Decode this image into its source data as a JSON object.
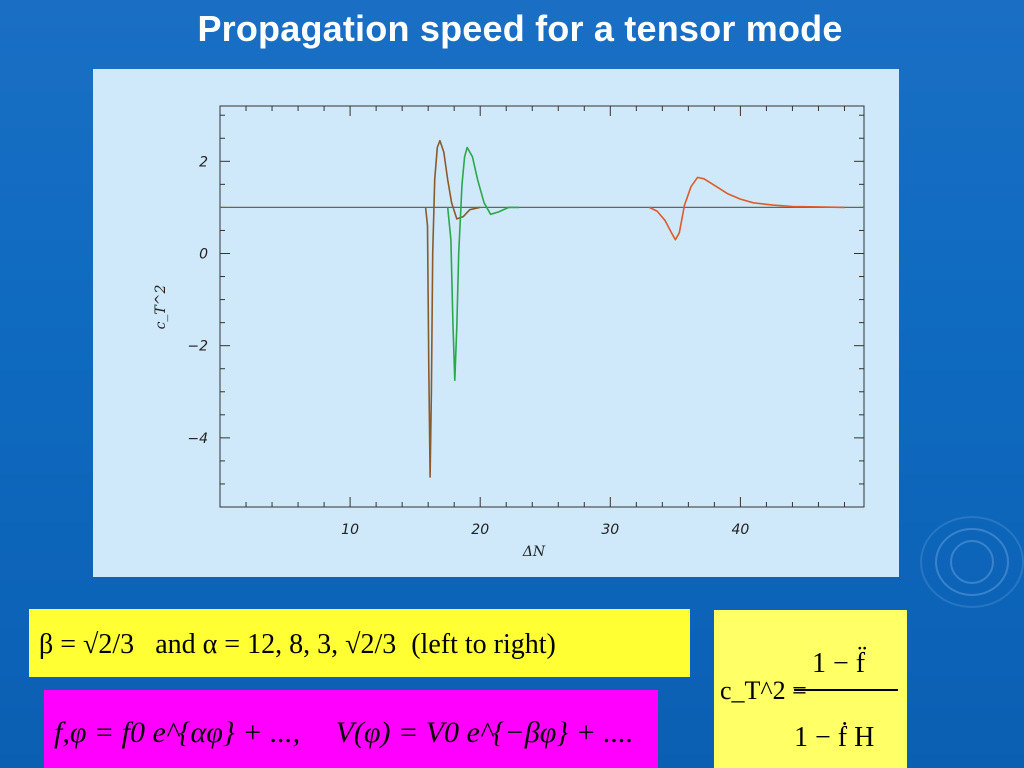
{
  "slide": {
    "title": "Propagation speed for a tensor mode"
  },
  "formulas": {
    "parameters": {
      "beta_part": "β = √2/3",
      "and_text": "and",
      "alpha_part": "α = 12, 8, 3, √2/3",
      "order_text": "(left  to  right)"
    },
    "potential": {
      "lhs": "f,φ = f0 e^{αφ} + ...,",
      "rhs": "V(φ) = V0 e^{−βφ} + ...."
    },
    "ct2": {
      "lhs": "c_T^2 =",
      "numerator": "1 − f̈",
      "denominator": "1 − ḟ H"
    }
  },
  "colors": {
    "background": "#0f6bc0",
    "panel": "#cfe9fb",
    "yellow_box": "#ffff33",
    "magenta_box": "#ff00ff",
    "ct_box": "#ffff66"
  },
  "chart_data": {
    "type": "line",
    "title": "",
    "xlabel": "ΔN",
    "ylabel": "c_T^2",
    "xlim": [
      0,
      49.5
    ],
    "ylim": [
      -5.5,
      3.2
    ],
    "xticks": [
      10,
      20,
      30,
      40
    ],
    "yticks": [
      -4,
      -2,
      0,
      2
    ],
    "grid": false,
    "legend": "none",
    "reference_line": {
      "y": 1.0,
      "color": "#6b6b3a"
    },
    "series": [
      {
        "color": "#8a5a2a",
        "points": [
          [
            15.8,
            1.0
          ],
          [
            15.95,
            0.6
          ],
          [
            16.05,
            -2.5
          ],
          [
            16.15,
            -4.85
          ],
          [
            16.25,
            -3.0
          ],
          [
            16.35,
            0.0
          ],
          [
            16.5,
            1.6
          ],
          [
            16.7,
            2.3
          ],
          [
            16.9,
            2.45
          ],
          [
            17.2,
            2.2
          ],
          [
            17.5,
            1.6
          ],
          [
            17.8,
            1.1
          ],
          [
            18.2,
            0.75
          ],
          [
            18.7,
            0.8
          ],
          [
            19.2,
            0.95
          ],
          [
            20.0,
            1.0
          ]
        ]
      },
      {
        "color": "#2aa84a",
        "points": [
          [
            17.5,
            1.0
          ],
          [
            17.75,
            0.3
          ],
          [
            17.9,
            -1.5
          ],
          [
            18.05,
            -2.75
          ],
          [
            18.2,
            -1.6
          ],
          [
            18.35,
            0.0
          ],
          [
            18.6,
            1.5
          ],
          [
            18.8,
            2.1
          ],
          [
            19.0,
            2.3
          ],
          [
            19.4,
            2.1
          ],
          [
            19.8,
            1.6
          ],
          [
            20.3,
            1.1
          ],
          [
            20.8,
            0.85
          ],
          [
            21.4,
            0.9
          ],
          [
            22.2,
            1.0
          ],
          [
            23.0,
            1.0
          ]
        ]
      },
      {
        "color": "#e05a2a",
        "points": [
          [
            33.0,
            1.0
          ],
          [
            33.6,
            0.92
          ],
          [
            34.2,
            0.72
          ],
          [
            34.7,
            0.45
          ],
          [
            35.0,
            0.3
          ],
          [
            35.3,
            0.45
          ],
          [
            35.7,
            1.05
          ],
          [
            36.2,
            1.45
          ],
          [
            36.7,
            1.65
          ],
          [
            37.2,
            1.62
          ],
          [
            38.0,
            1.48
          ],
          [
            39.0,
            1.3
          ],
          [
            40.0,
            1.18
          ],
          [
            41.0,
            1.1
          ],
          [
            42.5,
            1.05
          ],
          [
            44.0,
            1.02
          ],
          [
            46.0,
            1.01
          ],
          [
            48.0,
            1.0
          ]
        ]
      }
    ]
  }
}
